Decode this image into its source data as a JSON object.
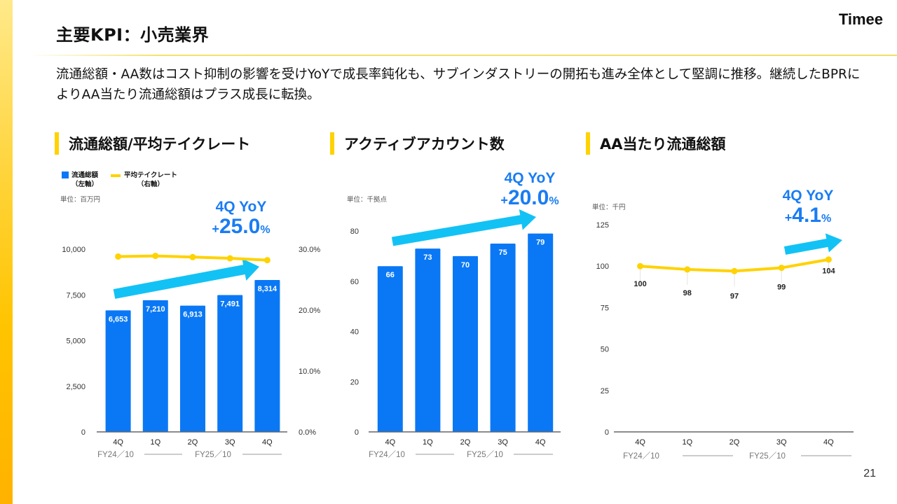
{
  "header": {
    "title": "主要KPI：小売業界",
    "logo": "Timee",
    "summary": "流通総額・AA数はコスト抑制の影響を受けYoYで成長率鈍化も、サブインダストリーの開拓も進み全体として堅調に推移。継続したBPRによりAA当たり流通総額はプラス成長に転換。"
  },
  "page_number": "21",
  "colors": {
    "bar": "#0a78f5",
    "line": "#ffd200",
    "arrow": "#12c2f5",
    "yoy_text": "#1a7cf3",
    "accent": "#ffd200"
  },
  "sections": [
    {
      "title": "流通総額/平均テイクレート",
      "unit": "単位：百万円",
      "legend": [
        {
          "label": "流通総額",
          "sub": "（左軸）",
          "kind": "bar"
        },
        {
          "label": "平均テイクレート",
          "sub": "（右軸）",
          "kind": "line"
        }
      ],
      "yoy": {
        "label": "4Q YoY",
        "plus": "+",
        "value": "25.0",
        "pct": "%"
      }
    },
    {
      "title": "アクティブアカウント数",
      "unit": "単位：千拠点",
      "yoy": {
        "label": "4Q YoY",
        "plus": "+",
        "value": "20.0",
        "pct": "%"
      }
    },
    {
      "title": "AA当たり流通総額",
      "unit": "単位：千円",
      "yoy": {
        "label": "4Q YoY",
        "plus": "+",
        "value": "4.1",
        "pct": "%"
      }
    }
  ],
  "chart_data": [
    {
      "type": "bar",
      "title": "流通総額/平均テイクレート",
      "categories": [
        "4Q",
        "1Q",
        "2Q",
        "3Q",
        "4Q"
      ],
      "fiscal_groups": [
        {
          "label": "FY24／10",
          "span": 1
        },
        {
          "label": "FY25／10",
          "span": 4
        }
      ],
      "series": [
        {
          "name": "流通総額（左軸）",
          "type": "bar",
          "axis": "left",
          "values": [
            6653,
            7210,
            6913,
            7491,
            8314
          ],
          "labels": [
            "6,653",
            "7,210",
            "6,913",
            "7,491",
            "8,314"
          ]
        },
        {
          "name": "平均テイクレート（右軸）",
          "type": "line",
          "axis": "right",
          "values": [
            28.8,
            28.9,
            28.7,
            28.5,
            28.2
          ]
        }
      ],
      "ylim": [
        0,
        10000
      ],
      "yticks": [
        "0",
        "2,500",
        "5,000",
        "7,500",
        "10,000"
      ],
      "yticks_values": [
        0,
        2500,
        5000,
        7500,
        10000
      ],
      "y2lim": [
        0,
        30
      ],
      "y2ticks": [
        "0.0%",
        "10.0%",
        "20.0%",
        "30.0%"
      ],
      "y2ticks_values": [
        0,
        10,
        20,
        30
      ],
      "unit": "単位：百万円",
      "annotation": "4Q YoY +25.0%",
      "grid": false,
      "legend_position": "top-left"
    },
    {
      "type": "bar",
      "title": "アクティブアカウント数",
      "categories": [
        "4Q",
        "1Q",
        "2Q",
        "3Q",
        "4Q"
      ],
      "fiscal_groups": [
        {
          "label": "FY24／10",
          "span": 1
        },
        {
          "label": "FY25／10",
          "span": 4
        }
      ],
      "series": [
        {
          "name": "アクティブアカウント数",
          "type": "bar",
          "values": [
            66,
            73,
            70,
            75,
            79
          ],
          "labels": [
            "66",
            "73",
            "70",
            "75",
            "79"
          ]
        }
      ],
      "ylim": [
        0,
        80
      ],
      "yticks": [
        "0",
        "20",
        "40",
        "60",
        "80"
      ],
      "yticks_values": [
        0,
        20,
        40,
        60,
        80
      ],
      "unit": "単位：千拠点",
      "annotation": "4Q YoY +20.0%",
      "grid": false
    },
    {
      "type": "line",
      "title": "AA当たり流通総額",
      "categories": [
        "4Q",
        "1Q",
        "2Q",
        "3Q",
        "4Q"
      ],
      "fiscal_groups": [
        {
          "label": "FY24／10",
          "span": 1
        },
        {
          "label": "FY25／10",
          "span": 4
        }
      ],
      "series": [
        {
          "name": "AA当たり流通総額",
          "type": "line",
          "values": [
            100,
            98,
            97,
            99,
            104
          ],
          "labels": [
            "100",
            "98",
            "97",
            "99",
            "104"
          ]
        }
      ],
      "ylim": [
        0,
        125
      ],
      "yticks": [
        "0",
        "25",
        "50",
        "75",
        "100",
        "125"
      ],
      "yticks_values": [
        0,
        25,
        50,
        75,
        100,
        125
      ],
      "unit": "単位：千円",
      "annotation": "4Q YoY +4.1%",
      "grid": false
    }
  ]
}
